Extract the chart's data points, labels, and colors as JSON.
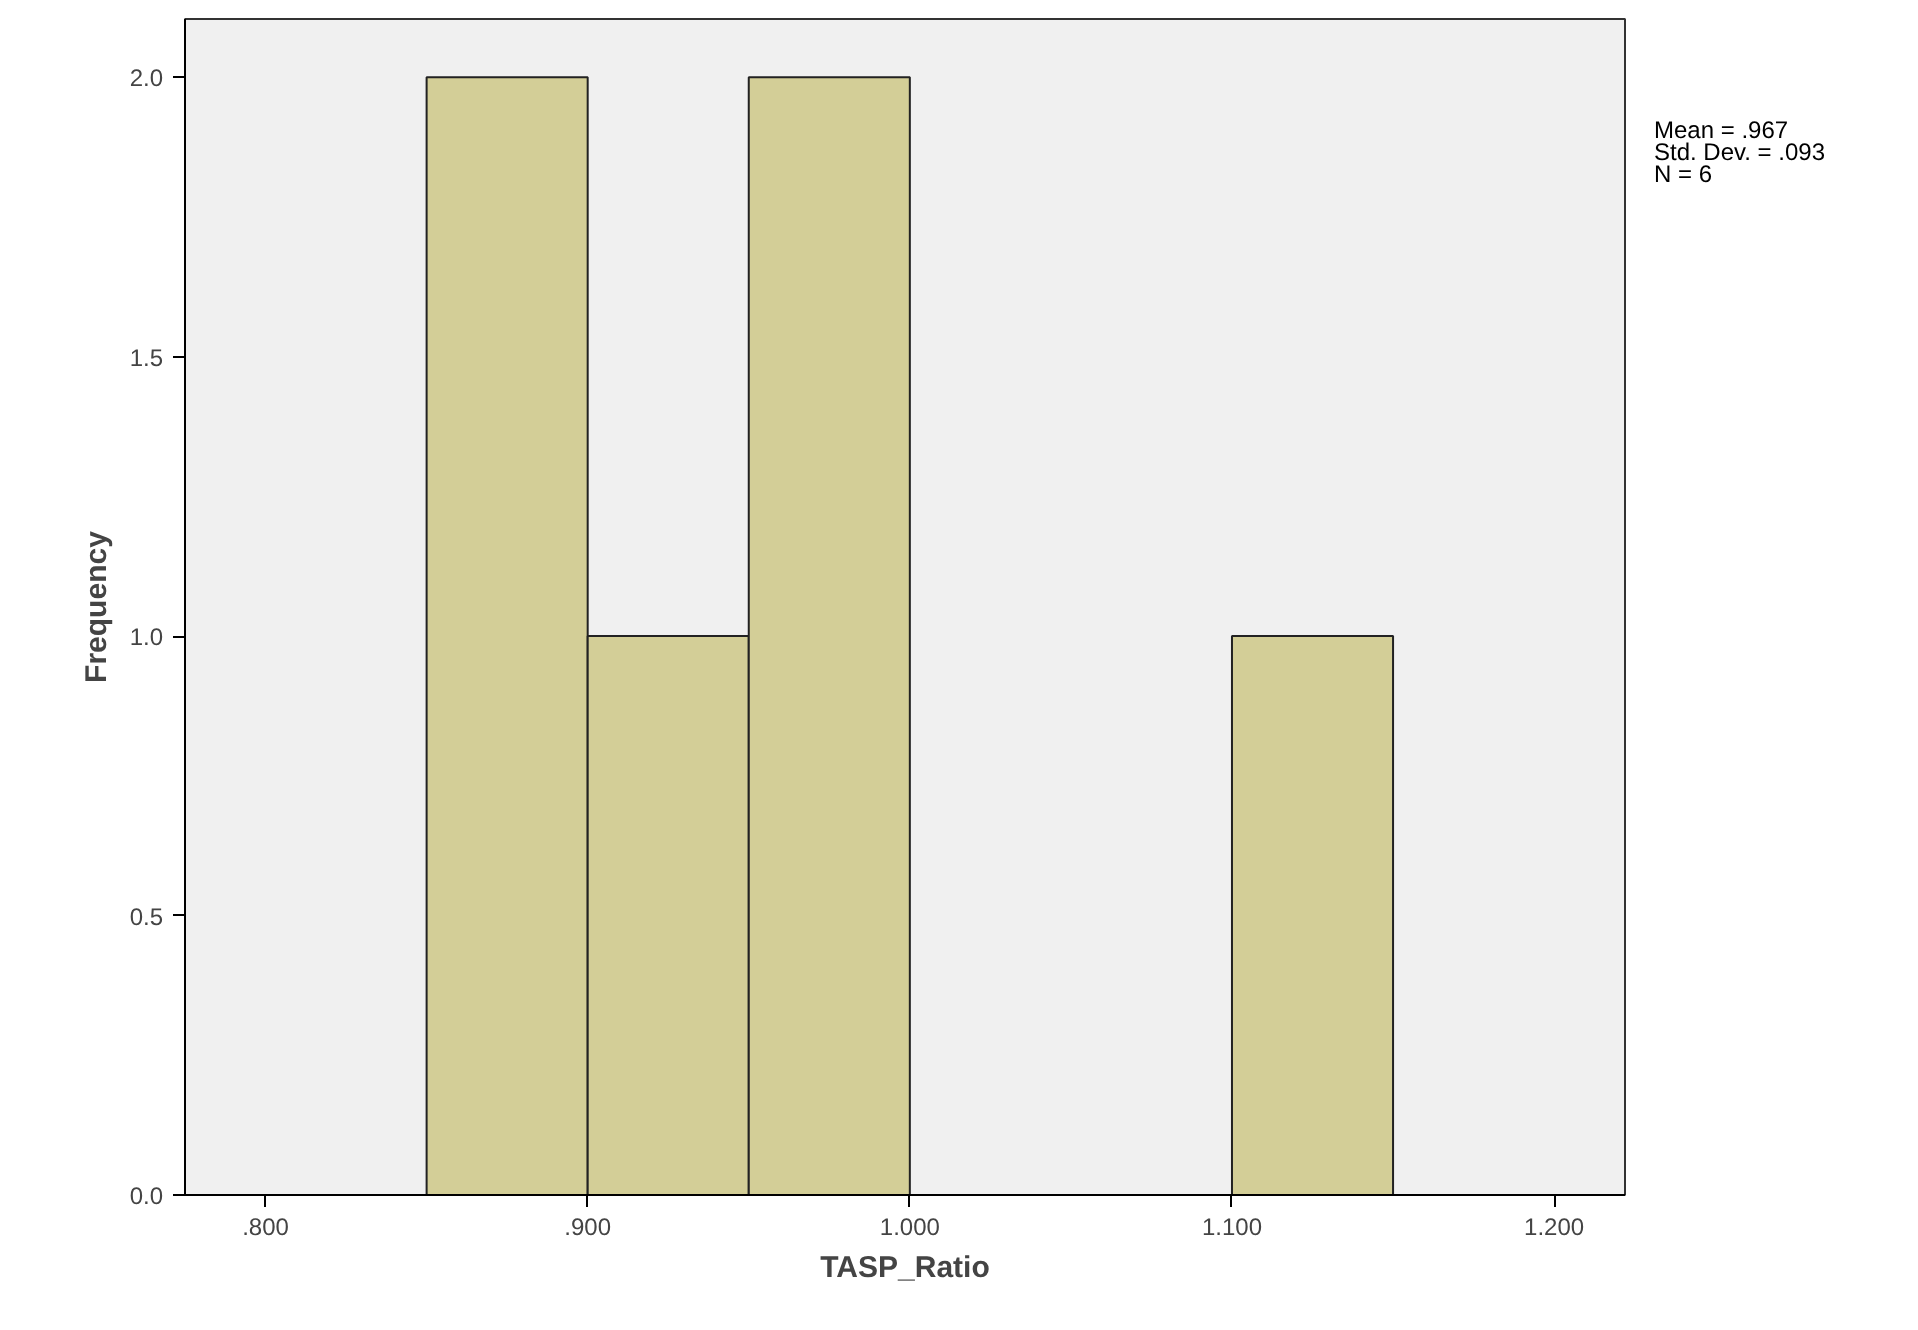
{
  "chart_data": {
    "type": "histogram",
    "xlabel": "TASP_Ratio",
    "ylabel": "Frequency",
    "bins": [
      0.85,
      0.9,
      0.95,
      1.0,
      1.05,
      1.1,
      1.15
    ],
    "values": [
      2,
      1,
      2,
      0,
      0,
      1
    ],
    "color": "#d3ce97",
    "xlim": [
      0.775,
      1.222
    ],
    "ylim": [
      0,
      2.104
    ],
    "xticks": [
      {
        "value": 0.8,
        "label": ".800"
      },
      {
        "value": 0.9,
        "label": ".900"
      },
      {
        "value": 1.0,
        "label": "1.000"
      },
      {
        "value": 1.1,
        "label": "1.100"
      },
      {
        "value": 1.2,
        "label": "1.200"
      }
    ],
    "yticks": [
      {
        "value": 0,
        "label": "0.0"
      },
      {
        "value": 0.5,
        "label": "0.5"
      },
      {
        "value": 1.0,
        "label": "1.0"
      },
      {
        "value": 1.5,
        "label": "1.5"
      },
      {
        "value": 2.0,
        "label": "2.0"
      }
    ],
    "annotations": [
      "Mean = .967",
      "Std. Dev. = .093",
      "N = 6"
    ],
    "grid": false
  }
}
